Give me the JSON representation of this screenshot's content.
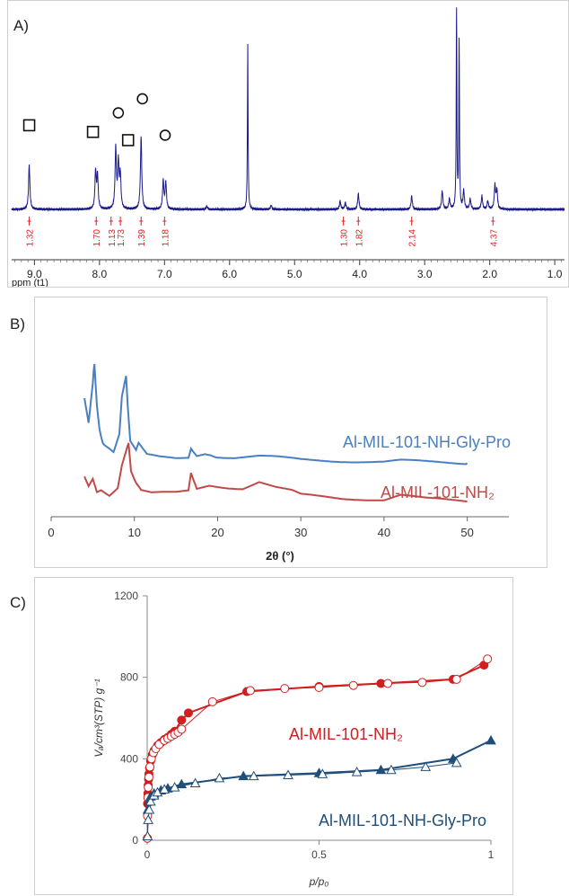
{
  "colors": {
    "nmr_spectrum": "#1a1a8c",
    "integral_red": "#e02020",
    "xrd_nh_gly_pro": "#4a7fc0",
    "xrd_nh2": "#c04a48",
    "iso_nh2": "#d01f1f",
    "iso_nh_gly_pro": "#1f4e7a",
    "axis": "#444444"
  },
  "panel_a": {
    "label": "A)",
    "axis_title": "ppm (t1)",
    "integrals": [
      "1.32",
      "1.70",
      "1.13",
      "1.73",
      "1.39",
      "1.18",
      "1.30",
      "1.82",
      "2.14",
      "4.37"
    ],
    "chart_data": {
      "type": "line",
      "x_ticks": [
        "9.0",
        "8.0",
        "7.0",
        "6.0",
        "5.0",
        "4.0",
        "3.0",
        "2.0",
        "1.0"
      ],
      "xlim": [
        9.35,
        0.85
      ],
      "markers": [
        {
          "shape": "square",
          "ppm": 9.08,
          "height": 0.8
        },
        {
          "shape": "square",
          "ppm": 8.1,
          "height": 0.72
        },
        {
          "shape": "square",
          "ppm": 7.56,
          "height": 0.62
        },
        {
          "shape": "circle",
          "ppm": 7.71,
          "height": 0.95
        },
        {
          "shape": "circle",
          "ppm": 7.34,
          "height": 1.12
        },
        {
          "shape": "circle",
          "ppm": 6.99,
          "height": 0.68
        }
      ],
      "peaks": [
        {
          "ppm": 9.08,
          "height": 0.54
        },
        {
          "ppm": 8.06,
          "height": 0.45
        },
        {
          "ppm": 8.03,
          "height": 0.4
        },
        {
          "ppm": 7.75,
          "height": 0.73
        },
        {
          "ppm": 7.71,
          "height": 0.55
        },
        {
          "ppm": 7.68,
          "height": 0.4
        },
        {
          "ppm": 7.36,
          "height": 0.88
        },
        {
          "ppm": 7.02,
          "height": 0.34
        },
        {
          "ppm": 6.98,
          "height": 0.32
        },
        {
          "ppm": 6.35,
          "height": 0.04
        },
        {
          "ppm": 5.72,
          "height": 2.0
        },
        {
          "ppm": 5.36,
          "height": 0.05
        },
        {
          "ppm": 4.3,
          "height": 0.1
        },
        {
          "ppm": 4.22,
          "height": 0.08
        },
        {
          "ppm": 4.02,
          "height": 0.19
        },
        {
          "ppm": 3.2,
          "height": 0.16
        },
        {
          "ppm": 2.73,
          "height": 0.22
        },
        {
          "ppm": 2.62,
          "height": 0.12
        },
        {
          "ppm": 2.51,
          "height": 2.4
        },
        {
          "ppm": 2.47,
          "height": 2.0
        },
        {
          "ppm": 2.4,
          "height": 0.22
        },
        {
          "ppm": 2.3,
          "height": 0.12
        },
        {
          "ppm": 2.12,
          "height": 0.16
        },
        {
          "ppm": 2.03,
          "height": 0.1
        },
        {
          "ppm": 1.92,
          "height": 0.28
        },
        {
          "ppm": 1.89,
          "height": 0.22
        }
      ]
    }
  },
  "panel_b": {
    "label": "B)",
    "legend": [
      "Al-MIL-101-NH-Gly-Pro",
      "Al-MIL-101-NH₂"
    ],
    "chart_data": {
      "type": "line",
      "xlabel": "2θ (°)",
      "x_ticks": [
        "0",
        "10",
        "20",
        "30",
        "40",
        "50"
      ],
      "xlim": [
        0,
        55
      ],
      "series": [
        {
          "name": "Al-MIL-101-NH-Gly-Pro",
          "x": [
            4,
            4.5,
            5.0,
            5.2,
            5.5,
            5.8,
            6.2,
            6.8,
            7.5,
            8.2,
            8.5,
            9.0,
            9.2,
            9.5,
            10.2,
            10.5,
            11.5,
            13,
            15,
            16.5,
            16.8,
            17.5,
            18.5,
            19.2,
            20,
            22,
            25,
            27,
            30,
            35,
            40,
            42,
            45,
            50
          ],
          "y": [
            62,
            40,
            75,
            92,
            55,
            33,
            22,
            16,
            13,
            30,
            62,
            80,
            55,
            22,
            15,
            20,
            10,
            8,
            7,
            8,
            17,
            10,
            12,
            10,
            9,
            8,
            9,
            8,
            6,
            5,
            4,
            5,
            4,
            3
          ]
        },
        {
          "name": "Al-MIL-101-NH₂",
          "x": [
            4,
            4.5,
            5.0,
            5.5,
            6.0,
            7.0,
            8.0,
            8.5,
            9.0,
            9.3,
            9.6,
            10.2,
            10.8,
            12,
            13.5,
            15,
            16.5,
            16.8,
            17.5,
            19,
            21,
            23,
            25,
            27,
            29,
            30,
            35,
            40,
            42,
            45,
            50
          ],
          "y": [
            28,
            18,
            26,
            12,
            14,
            8,
            16,
            40,
            55,
            62,
            32,
            22,
            12,
            10,
            10,
            10,
            12,
            32,
            14,
            18,
            16,
            15,
            22,
            16,
            12,
            8,
            4,
            3,
            8,
            4,
            1
          ]
        }
      ]
    }
  },
  "panel_c": {
    "label": "C)",
    "legend": [
      "Al-MIL-101-NH₂",
      "Al-MIL-101-NH-Gly-Pro"
    ],
    "ylabel": "Vₐ/cm³(STP) g⁻¹",
    "xlabel": "p/p₀",
    "chart_data": {
      "type": "scatter",
      "x_ticks": [
        "0",
        "0.5",
        "1"
      ],
      "y_ticks": [
        "0",
        "400",
        "800",
        "1200"
      ],
      "xlim": [
        0,
        1
      ],
      "ylim": [
        0,
        1200
      ],
      "series": [
        {
          "name": "Al-MIL-101-NH₂ adsorption",
          "x": [
            0.001,
            0.002,
            0.003,
            0.004,
            0.005,
            0.007,
            0.01,
            0.015,
            0.02,
            0.03,
            0.04,
            0.05,
            0.06,
            0.07,
            0.08,
            0.1,
            0.12,
            0.29,
            0.5,
            0.68,
            0.89,
            0.98
          ],
          "y": [
            180,
            230,
            270,
            300,
            325,
            355,
            390,
            420,
            440,
            465,
            480,
            495,
            505,
            520,
            535,
            590,
            625,
            730,
            755,
            770,
            790,
            860
          ]
        },
        {
          "name": "Al-MIL-101-NH₂ desorption",
          "x": [
            0.0005,
            0.001,
            0.002,
            0.003,
            0.005,
            0.008,
            0.012,
            0.018,
            0.025,
            0.035,
            0.05,
            0.06,
            0.07,
            0.08,
            0.09,
            0.1,
            0.19,
            0.3,
            0.4,
            0.5,
            0.6,
            0.7,
            0.8,
            0.9,
            0.99
          ],
          "y": [
            10,
            120,
            210,
            260,
            310,
            360,
            400,
            430,
            450,
            470,
            490,
            500,
            510,
            520,
            530,
            545,
            680,
            735,
            745,
            750,
            760,
            770,
            775,
            790,
            890
          ]
        },
        {
          "name": "Al-MIL-101-NH-Gly-Pro adsorption",
          "x": [
            0.002,
            0.005,
            0.01,
            0.02,
            0.04,
            0.06,
            0.1,
            0.28,
            0.5,
            0.68,
            0.89,
            1.0
          ],
          "y": [
            150,
            190,
            215,
            230,
            245,
            255,
            275,
            315,
            330,
            345,
            400,
            490
          ]
        },
        {
          "name": "Al-MIL-101-NH-Gly-Pro desorption",
          "x": [
            0.001,
            0.003,
            0.006,
            0.01,
            0.02,
            0.03,
            0.05,
            0.08,
            0.14,
            0.21,
            0.31,
            0.41,
            0.51,
            0.61,
            0.71,
            0.81,
            0.9
          ],
          "y": [
            20,
            100,
            150,
            190,
            220,
            235,
            250,
            260,
            280,
            305,
            315,
            320,
            325,
            335,
            345,
            360,
            380
          ]
        }
      ]
    }
  }
}
